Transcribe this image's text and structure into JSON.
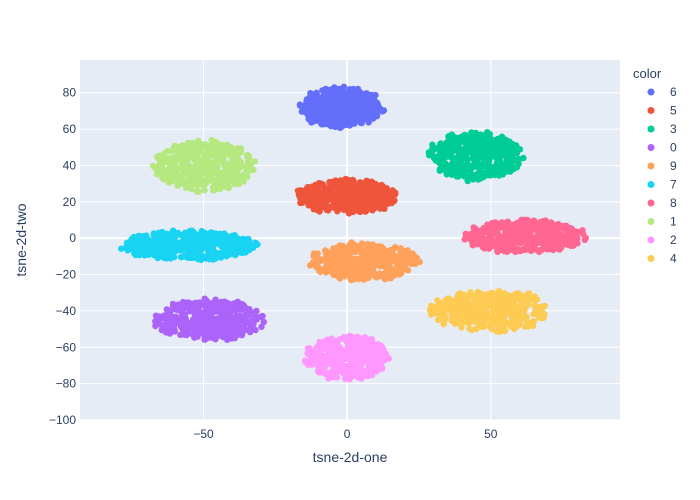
{
  "chart_data": {
    "type": "scatter",
    "title": "",
    "xlabel": "tsne-2d-one",
    "ylabel": "tsne-2d-two",
    "xlim": [
      -93,
      95
    ],
    "ylim": [
      -100,
      98
    ],
    "x_ticks": [
      -50,
      0,
      50
    ],
    "x_tick_labels": [
      "−50",
      "0",
      "50"
    ],
    "y_ticks": [
      -100,
      -80,
      -60,
      -40,
      -20,
      0,
      20,
      40,
      60,
      80
    ],
    "y_tick_labels": [
      "−100",
      "−80",
      "−60",
      "−40",
      "−20",
      "0",
      "20",
      "40",
      "60",
      "80"
    ],
    "grid": true,
    "legend_title": "color",
    "legend_position": "right",
    "series": [
      {
        "name": "6",
        "color": "#636efa",
        "cluster": {
          "center": [
            -2,
            72
          ],
          "spread": [
            14,
            11
          ],
          "count": 420
        }
      },
      {
        "name": "5",
        "color": "#EF553B",
        "cluster": {
          "center": [
            0,
            23
          ],
          "spread": [
            17,
            9
          ],
          "count": 420
        }
      },
      {
        "name": "3",
        "color": "#00cc96",
        "cluster": {
          "center": [
            45,
            45
          ],
          "spread": [
            16,
            13
          ],
          "count": 420
        }
      },
      {
        "name": "0",
        "color": "#ab63fa",
        "cluster": {
          "center": [
            -48,
            -45
          ],
          "spread": [
            18,
            11
          ],
          "count": 420
        }
      },
      {
        "name": "9",
        "color": "#FFA15A",
        "cluster": {
          "center": [
            6,
            -13
          ],
          "spread": [
            18,
            10
          ],
          "count": 420
        }
      },
      {
        "name": "7",
        "color": "#19d3f3",
        "cluster": {
          "center": [
            -55,
            -4
          ],
          "spread": [
            23,
            8
          ],
          "count": 420
        }
      },
      {
        "name": "8",
        "color": "#FF6692",
        "cluster": {
          "center": [
            62,
            1
          ],
          "spread": [
            20,
            9
          ],
          "count": 420
        }
      },
      {
        "name": "1",
        "color": "#B6E880",
        "cluster": {
          "center": [
            -50,
            40
          ],
          "spread": [
            17,
            14
          ],
          "count": 420
        }
      },
      {
        "name": "2",
        "color": "#FF97FF",
        "cluster": {
          "center": [
            0,
            -66
          ],
          "spread": [
            14,
            12
          ],
          "count": 420
        }
      },
      {
        "name": "4",
        "color": "#FECB52",
        "cluster": {
          "center": [
            50,
            -40
          ],
          "spread": [
            20,
            11
          ],
          "count": 420
        }
      }
    ]
  }
}
